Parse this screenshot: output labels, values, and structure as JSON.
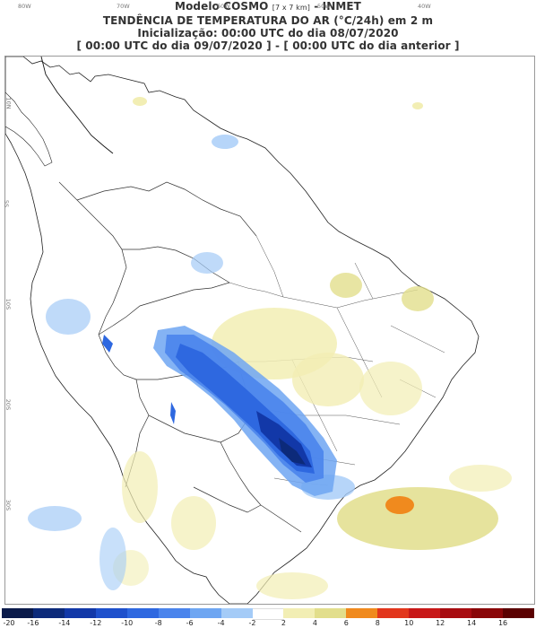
{
  "header": {
    "line1_main": "Modelo COSMO",
    "line1_small": "[7 x 7 km]",
    "line1_end": "- INMET",
    "line2": "TENDÊNCIA DE TEMPERATURA DO AR (°C/24h) em 2 m",
    "line3": "Inicialização: 00:00 UTC do dia 08/07/2020",
    "line4": "[ 00:00 UTC do dia 09/07/2020 ] - [ 00:00 UTC do dia anterior ]"
  },
  "axes": {
    "lon_ticks": [
      "80W",
      "70W",
      "60W",
      "50W",
      "40W"
    ],
    "lat_ticks": [
      "10N",
      "5S",
      "10S",
      "20S",
      "30S"
    ]
  },
  "legend": {
    "labels": [
      "-20",
      "-16",
      "-14",
      "-12",
      "-10",
      "-8",
      "-6",
      "-4",
      "-2",
      "2",
      "4",
      "6",
      "8",
      "10",
      "12",
      "14",
      "16"
    ],
    "colors": [
      "#0a1a4a",
      "#0c2a7a",
      "#1238a8",
      "#1e50cc",
      "#2e68e0",
      "#4a84ec",
      "#6ea6f2",
      "#a4cbf7",
      "#ffffff",
      "#f2eeb4",
      "#e2de8c",
      "#f08a1e",
      "#e2361c",
      "#c81818",
      "#a80c10",
      "#8a0608",
      "#5a0000"
    ]
  },
  "map_data": {
    "region": "South America / Brazil",
    "variable": "air temperature tendency at 2 m",
    "units": "°C/24h",
    "features": [
      {
        "name": "strong cooling",
        "values": "-14 to -20",
        "region": "Paraná / Santa Catarina / Mato Grosso do Sul"
      },
      {
        "name": "moderate cooling",
        "values": "-6 to -10",
        "region": "Bolivia / Mato Grosso / Paraguay"
      },
      {
        "name": "warming",
        "values": "+6 to +8",
        "region": "South Atlantic off Rio Grande do Sul"
      },
      {
        "name": "slight warming",
        "values": "+2 to +4",
        "region": "Goiás / Bahia / Northeast"
      }
    ]
  }
}
